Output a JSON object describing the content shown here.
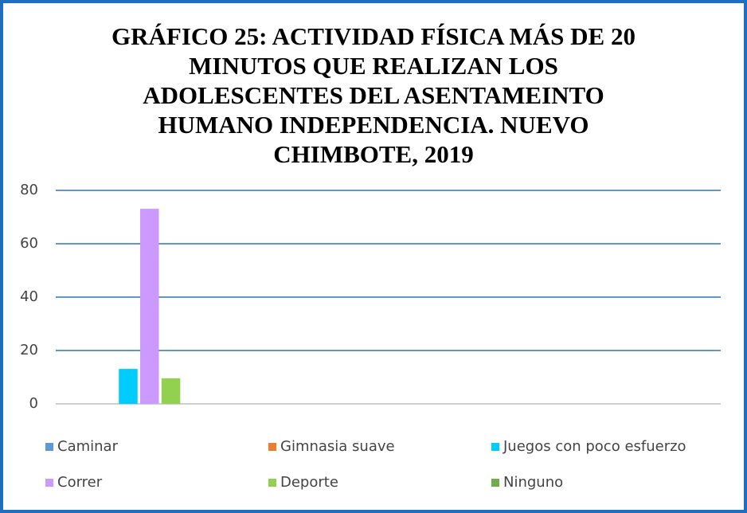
{
  "chart_data": {
    "type": "bar",
    "title": [
      "GRÁFICO 25: ACTIVIDAD FÍSICA MÁS DE 20",
      "MINUTOS QUE REALIZAN LOS",
      "ADOLESCENTES DEL ASENTAMEINTO",
      "HUMANO INDEPENDENCIA. NUEVO",
      "CHIMBOTE, 2019"
    ],
    "categories": [
      null,
      null,
      null,
      null
    ],
    "series": [
      {
        "name": "Caminar",
        "color": "#5b9bd5",
        "values": [
          0,
          null,
          null,
          null
        ]
      },
      {
        "name": "Gimnasia suave",
        "color": "#ed7d31",
        "values": [
          0,
          null,
          null,
          null
        ]
      },
      {
        "name": "Juegos con poco esfuerzo",
        "color": "#00ccff",
        "values": [
          13.1,
          null,
          null,
          null
        ]
      },
      {
        "name": "Correr",
        "color": "#cc99ff",
        "values": [
          73.1,
          null,
          null,
          null
        ]
      },
      {
        "name": "Deporte",
        "color": "#92d050",
        "values": [
          9.6,
          null,
          null,
          null
        ]
      },
      {
        "name": "Ninguno",
        "color": "#70ad47",
        "values": [
          0,
          null,
          null,
          null
        ]
      }
    ],
    "ylim": [
      0,
      80
    ],
    "yticks": [
      0,
      20,
      40,
      60,
      80
    ],
    "grid": true,
    "legend": "bottom"
  }
}
